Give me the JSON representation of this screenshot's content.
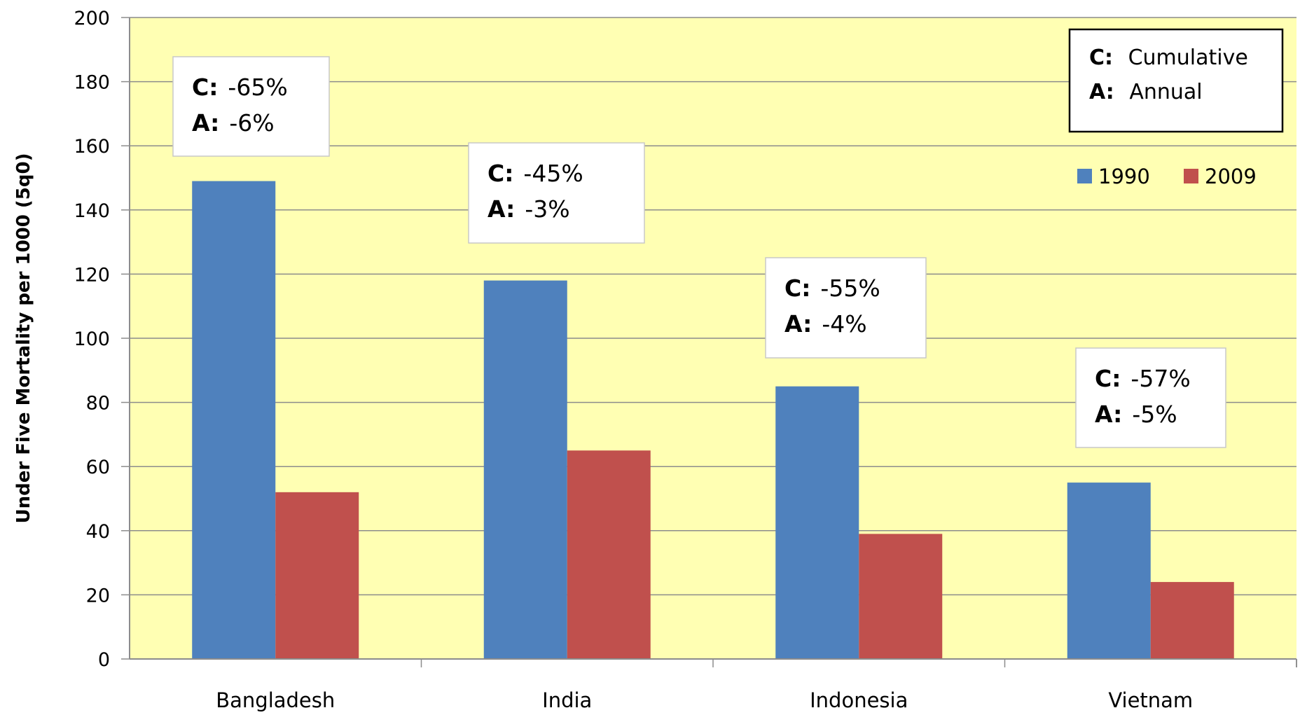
{
  "chart_data": {
    "type": "bar",
    "ylabel": "Under Five Mortality per 1000 (5q0)",
    "ylim": [
      0,
      200
    ],
    "yticks": [
      0,
      20,
      40,
      60,
      80,
      100,
      120,
      140,
      160,
      180,
      200
    ],
    "categories": [
      "Bangladesh",
      "India",
      "Indonesia",
      "Vietnam"
    ],
    "series": [
      {
        "name": "1990",
        "color": "#4F81BD",
        "values": [
          149,
          118,
          85,
          55
        ]
      },
      {
        "name": "2009",
        "color": "#C0504D",
        "values": [
          52,
          65,
          39,
          24
        ]
      }
    ],
    "annotations": [
      {
        "category": "Bangladesh",
        "c_label": "C:",
        "c_value": "-65%",
        "a_label": "A:",
        "a_value": "-6%"
      },
      {
        "category": "India",
        "c_label": "C:",
        "c_value": "-45%",
        "a_label": "A:",
        "a_value": "-3%"
      },
      {
        "category": "Indonesia",
        "c_label": "C:",
        "c_value": "-55%",
        "a_label": "A:",
        "a_value": "-4%"
      },
      {
        "category": "Vietnam",
        "c_label": "C:",
        "c_value": "-57%",
        "a_label": "A:",
        "a_value": "-5%"
      }
    ],
    "key": {
      "c_label": "C:",
      "c_text": "Cumulative",
      "a_label": "A:",
      "a_text": "Annual"
    },
    "plot_background": "#FFFFB3",
    "grid": true,
    "legend_position": "top-right"
  }
}
